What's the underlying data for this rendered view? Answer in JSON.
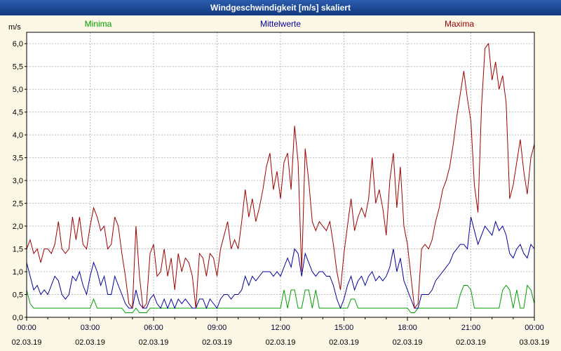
{
  "window": {
    "title": "Windgeschwindigkeit [m/s] skaliert"
  },
  "colors": {
    "page_bg": "#fdf8e6",
    "titlebar_top": "#2b5cae",
    "titlebar_bottom": "#123a7e",
    "title_text": "#ffffff",
    "plot_bg": "#ffffff",
    "grid": "#bdbdbd",
    "axis": "#000000",
    "minima": "#00a000",
    "mittelwerte": "#0000a0",
    "maxima": "#a00000"
  },
  "chart_data": {
    "type": "line",
    "title": "Windgeschwindigkeit [m/s] skaliert",
    "xlabel": "",
    "ylabel": "m/s",
    "legend_position": "top",
    "grid": true,
    "sample_interval_minutes": 10,
    "y_axis": {
      "label": "m/s",
      "min": 0,
      "max": 6.25,
      "tick_step": 0.5,
      "tick_labels": [
        "0,0",
        "0,5",
        "1,0",
        "1,5",
        "2,0",
        "2,5",
        "3,0",
        "3,5",
        "4,0",
        "4,5",
        "5,0",
        "5,5",
        "6,0"
      ]
    },
    "x_axis": {
      "hours_span": 24,
      "major_step_hours": 3,
      "minor_step_hours": 1,
      "ticks": [
        {
          "time": "00:00",
          "date": "02.03.19"
        },
        {
          "time": "03:00",
          "date": "02.03.19"
        },
        {
          "time": "06:00",
          "date": "02.03.19"
        },
        {
          "time": "09:00",
          "date": "02.03.19"
        },
        {
          "time": "12:00",
          "date": "02.03.19"
        },
        {
          "time": "15:00",
          "date": "02.03.19"
        },
        {
          "time": "18:00",
          "date": "02.03.19"
        },
        {
          "time": "21:00",
          "date": "02.03.19"
        },
        {
          "time": "00:00",
          "date": "03.03.19"
        }
      ]
    },
    "series": [
      {
        "name": "Minima",
        "color": "#00a000",
        "values": [
          0.6,
          0.3,
          0.2,
          0.2,
          0.2,
          0.2,
          0.2,
          0.2,
          0.2,
          0.2,
          0.2,
          0.2,
          0.2,
          0.2,
          0.2,
          0.2,
          0.2,
          0.2,
          0.2,
          0.4,
          0.2,
          0.2,
          0.2,
          0.2,
          0.2,
          0.2,
          0.2,
          0.2,
          0.1,
          0.1,
          0.1,
          0.2,
          0.1,
          0.1,
          0.1,
          0.2,
          0.2,
          0.2,
          0.2,
          0.2,
          0.2,
          0.2,
          0.2,
          0.2,
          0.2,
          0.2,
          0.2,
          0.2,
          0.2,
          0.2,
          0.2,
          0.2,
          0.2,
          0.2,
          0.2,
          0.2,
          0.2,
          0.2,
          0.2,
          0.2,
          0.2,
          0.2,
          0.2,
          0.2,
          0.2,
          0.2,
          0.2,
          0.2,
          0.2,
          0.2,
          0.2,
          0.2,
          0.2,
          0.6,
          0.2,
          0.6,
          0.6,
          0.2,
          0.2,
          0.6,
          0.6,
          0.2,
          0.6,
          0.2,
          0.2,
          0.2,
          0.2,
          0.2,
          0.2,
          0.2,
          0.2,
          0.2,
          0.4,
          0.4,
          0.2,
          0.2,
          0.2,
          0.2,
          0.2,
          0.2,
          0.2,
          0.2,
          0.2,
          0.2,
          0.2,
          0.2,
          0.2,
          0.2,
          0.2,
          0.1,
          0.1,
          0.2,
          0.2,
          0.2,
          0.2,
          0.2,
          0.2,
          0.2,
          0.2,
          0.2,
          0.2,
          0.2,
          0.2,
          0.5,
          0.7,
          0.7,
          0.6,
          0.2,
          0.2,
          0.2,
          0.2,
          0.2,
          0.2,
          0.2,
          0.2,
          0.6,
          0.7,
          0.6,
          0.2,
          0.6,
          0.2,
          0.2,
          0.7,
          0.6,
          0.3
        ]
      },
      {
        "name": "Mittelwerte",
        "color": "#0000a0",
        "values": [
          1.2,
          0.9,
          0.6,
          0.7,
          0.5,
          0.6,
          0.5,
          0.7,
          0.9,
          0.8,
          0.5,
          0.4,
          0.5,
          0.9,
          0.8,
          1.0,
          0.7,
          0.5,
          0.9,
          1.2,
          1.0,
          0.7,
          0.9,
          0.5,
          0.5,
          0.9,
          0.7,
          0.5,
          0.3,
          0.2,
          0.2,
          0.6,
          0.3,
          0.2,
          0.2,
          0.4,
          0.5,
          0.3,
          0.2,
          0.4,
          0.2,
          0.4,
          0.2,
          0.4,
          0.3,
          0.4,
          0.3,
          0.2,
          0.2,
          0.4,
          0.4,
          0.2,
          0.4,
          0.3,
          0.2,
          0.4,
          0.5,
          0.5,
          0.4,
          0.5,
          0.5,
          0.6,
          0.9,
          0.7,
          0.9,
          0.8,
          0.9,
          1.0,
          1.0,
          1.0,
          0.9,
          1.0,
          0.9,
          1.1,
          1.3,
          1.1,
          1.5,
          1.4,
          0.9,
          1.4,
          1.2,
          1.0,
          0.9,
          1.0,
          1.0,
          0.9,
          0.9,
          0.7,
          0.4,
          0.2,
          0.4,
          0.7,
          0.9,
          0.6,
          0.8,
          0.9,
          0.7,
          0.9,
          1.0,
          0.8,
          0.9,
          0.8,
          0.9,
          1.1,
          1.5,
          1.0,
          1.3,
          0.8,
          0.6,
          0.4,
          0.2,
          0.2,
          0.5,
          0.5,
          0.5,
          0.6,
          0.8,
          0.9,
          1.0,
          1.1,
          1.2,
          1.4,
          1.5,
          1.6,
          1.6,
          1.5,
          2.2,
          1.9,
          1.6,
          1.8,
          2.0,
          1.9,
          1.8,
          2.1,
          1.9,
          2.0,
          1.8,
          1.4,
          1.3,
          1.5,
          1.6,
          1.4,
          1.3,
          1.6,
          1.5
        ]
      },
      {
        "name": "Maxima",
        "color": "#a00000",
        "values": [
          1.5,
          1.7,
          1.4,
          1.5,
          1.2,
          1.5,
          1.5,
          1.4,
          1.6,
          2.1,
          1.5,
          1.4,
          1.5,
          2.2,
          1.7,
          2.2,
          1.6,
          1.5,
          2.0,
          2.4,
          2.2,
          1.9,
          2.0,
          1.5,
          1.6,
          2.2,
          2.0,
          1.4,
          0.9,
          0.3,
          0.2,
          2.0,
          0.9,
          0.2,
          0.3,
          1.4,
          1.6,
          0.9,
          1.0,
          1.5,
          0.9,
          1.3,
          0.6,
          1.4,
          1.0,
          1.3,
          1.2,
          0.9,
          0.2,
          1.4,
          1.3,
          0.9,
          1.4,
          1.3,
          0.9,
          1.5,
          1.8,
          2.1,
          1.5,
          1.7,
          1.5,
          2.1,
          2.8,
          2.2,
          2.6,
          2.1,
          2.4,
          2.8,
          3.3,
          3.6,
          2.8,
          3.2,
          2.6,
          3.4,
          3.6,
          2.8,
          4.2,
          3.4,
          1.0,
          3.7,
          3.0,
          2.1,
          1.9,
          2.1,
          2.0,
          1.9,
          2.1,
          1.6,
          1.0,
          0.6,
          1.4,
          2.0,
          2.6,
          1.9,
          2.2,
          2.4,
          2.2,
          2.6,
          3.5,
          2.5,
          2.8,
          2.4,
          1.8,
          3.0,
          3.6,
          2.4,
          3.3,
          2.0,
          1.6,
          0.9,
          0.2,
          0.3,
          1.5,
          1.6,
          1.5,
          1.7,
          2.1,
          2.4,
          2.8,
          3.0,
          3.3,
          3.8,
          4.4,
          4.9,
          5.4,
          4.8,
          4.3,
          2.9,
          2.3,
          4.6,
          5.9,
          6.0,
          5.2,
          5.6,
          5.0,
          5.3,
          4.7,
          2.6,
          2.9,
          3.4,
          3.9,
          3.2,
          2.7,
          3.5,
          3.8
        ]
      }
    ]
  }
}
